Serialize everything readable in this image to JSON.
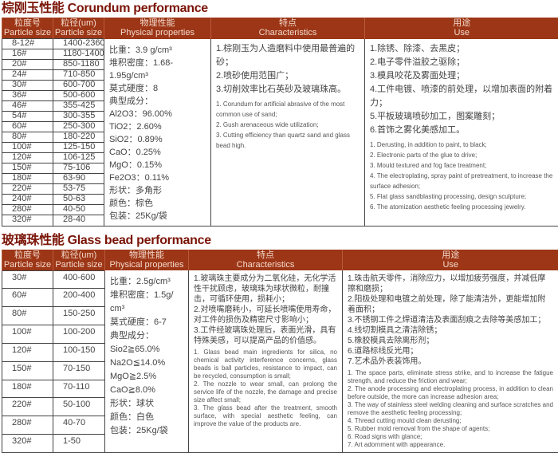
{
  "corundum": {
    "title": "棕刚玉性能 Corundum performance",
    "headers": [
      {
        "zh": "粒度号",
        "en": "Particle size"
      },
      {
        "zh": "粒径(um)",
        "en": "Particle size"
      },
      {
        "zh": "物理性能",
        "en": "Physical properties"
      },
      {
        "zh": "特点",
        "en": "Characteristics"
      },
      {
        "zh": "用途",
        "en": "Use"
      }
    ],
    "rows": [
      [
        "8-12#",
        "1400-2360"
      ],
      [
        "16#",
        "1180-1400"
      ],
      [
        "20#",
        "850-1180"
      ],
      [
        "24#",
        "710-850"
      ],
      [
        "30#",
        "600-700"
      ],
      [
        "36#",
        "500-600"
      ],
      [
        "46#",
        "355-425"
      ],
      [
        "54#",
        "300-355"
      ],
      [
        "60#",
        "250-300"
      ],
      [
        "80#",
        "180-220"
      ],
      [
        "100#",
        "125-150"
      ],
      [
        "120#",
        "106-125"
      ],
      [
        "150#",
        "75-106"
      ],
      [
        "180#",
        "63-90"
      ],
      [
        "220#",
        "53-75"
      ],
      [
        "240#",
        "50-63"
      ],
      [
        "280#",
        "40-50"
      ],
      [
        "320#",
        "28-40"
      ]
    ],
    "properties": [
      "比重：3.9 g/cm³",
      "堆积密度：1.68-1.95g/cm³",
      "莫式硬度：8",
      "典型成分：",
      "Al2O3：96.00%",
      "TiO2：2.60%",
      "SiO2：0.89%",
      "CaO：0.25%",
      "MgO：0.15%",
      "Fe2O3：0.11%",
      "形状：多角形",
      "颜色：棕色",
      "包装：25Kg/袋"
    ],
    "characteristics_zh": [
      "1.棕刚玉为人造磨料中使用最普遍的砂；",
      "2.喷砂使用范围广；",
      "3.切削效率比石英砂及玻璃珠高。"
    ],
    "characteristics_en": [
      "1. Corundum for artificial abrasive of the most common use of sand;",
      "2. Gush arenaceous wide utilization;",
      "3. Cutting efficiency than quartz sand and glass bead high."
    ],
    "use_zh": [
      "1.除锈、除漆、去黑皮；",
      "2.电子零件溢胶之驱除；",
      "3.模具咬花及雾面处理；",
      "4.工件电镀、喷漆的前处理，以增加表面的附着力；",
      "5.平板玻璃喷砂加工，图案雕刻；",
      "6.首饰之雾化美感加工。"
    ],
    "use_en": [
      "1. Derusting, in addition to paint, to black;",
      "2. Electronic parts of the glue to drive;",
      "3. Mould textured and fog face treatment;",
      "4. The electroplating, spray paint of pretreatment, to increase the surface adhesion;",
      "5. Flat glass sandblasting processing, design sculpture;",
      "6. The atomization aesthetic feeling processing jewelry."
    ]
  },
  "glass": {
    "title": "玻璃珠性能 Glass bead performance",
    "headers": [
      {
        "zh": "粒度号",
        "en": "Particle size"
      },
      {
        "zh": "粒径(um)",
        "en": "Particle size"
      },
      {
        "zh": "物理性能",
        "en": "Physical properties"
      },
      {
        "zh": "特点",
        "en": "Characteristics"
      },
      {
        "zh": "用途",
        "en": "Use"
      }
    ],
    "rows": [
      [
        "30#",
        "400-600"
      ],
      [
        "60#",
        "200-400"
      ],
      [
        "80#",
        "150-250"
      ],
      [
        "100#",
        "100-200"
      ],
      [
        "120#",
        "100-150"
      ],
      [
        "150#",
        "70-150"
      ],
      [
        "180#",
        "70-110"
      ],
      [
        "220#",
        "50-100"
      ],
      [
        "280#",
        "40-70"
      ],
      [
        "320#",
        "1-50"
      ]
    ],
    "properties": [
      "比重：2.5g/cm³",
      "堆积密度：1.5g/ cm³",
      "莫式硬度：6-7",
      "典型成分：",
      "Sio2≧65.0%",
      "Na2O≦14.0%",
      "MgO≧2.5%",
      "CaO≧8.0%",
      "形状：球状",
      "颜色：白色",
      "包装：25Kg/袋"
    ],
    "characteristics_zh": [
      "1.玻璃珠主要成分为二氧化硅，无化学活性干扰顾虑，玻璃珠为球状微粒，耐撞击，可循环使用，损耗小；",
      "2.对喷嘴磨耗小，可延长喷嘴使用寿命，对工件的损伤及精密尺寸影响小；",
      "3.工件经玻璃珠处理后，表面光滑，具有特殊美感，可以提高产品的价值感。"
    ],
    "characteristics_en": [
      "1. Glass bead main ingredients for silica, no chemical activity interference concerns, glass beads is ball particles, resistance to impact, can be recycled, consumption is small;",
      "2. The nozzle to wear small, can prolong the service life of the nozzle, the damage and precise size affect small;",
      "3. The glass bead after the treatment, smooth surface, with special aesthetic feeling, can improve the value of the products are."
    ],
    "use_zh": [
      "1.珠击航天零件，消除应力，以增加疲劳强度，并减低摩擦和磨损；",
      "2.阳极处理和电镀之前处理，除了能清洁外，更能增加附着面积；",
      "3.不锈钢工件之焊道清洁及表面刮痕之去除等美感加工；",
      "4.线切割模具之清洁除锈；",
      "5.橡胶模具去除离形剂；",
      "6.道路标线反光用；",
      "7.艺术品外表装饰用。"
    ],
    "use_en": [
      "1. The space parts, eliminate stress strike, and to increase the fatigue strength, and reduce the friction and wear;",
      "2. The anode processing and electroplating process, in addition to clean before outside, the more can increase adhesion area;",
      "3. The way of stainless steel welding cleaning and surface scratches and remove the aesthetic feeling processing;",
      "4. Thread cutting mould clean derusting;",
      "5. Rubber mold removal from the shape of agents;",
      "6. Road signs with glance;",
      "7. Art adornment with appearance."
    ]
  },
  "colors": {
    "header_bg": "#9c3616",
    "title": "#7a1508"
  }
}
